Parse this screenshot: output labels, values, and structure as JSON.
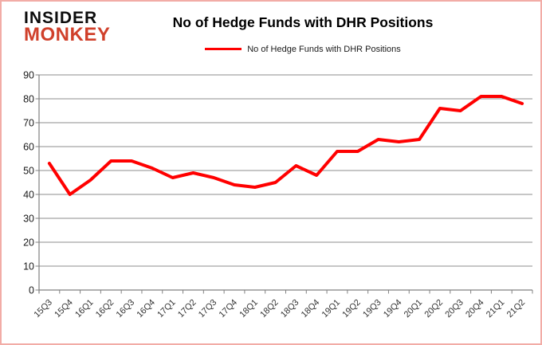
{
  "logo": {
    "line1": "INSIDER",
    "line2": "MONKEY",
    "accent_color": "#d0402b"
  },
  "header": {
    "title": "No of Hedge Funds with DHR Positions"
  },
  "legend": {
    "label": "No of Hedge Funds with DHR Positions",
    "swatch_color": "#ff0000"
  },
  "chart_data": {
    "type": "line",
    "title": "No of Hedge Funds with DHR Positions",
    "series_name": "No of Hedge Funds with DHR Positions",
    "categories": [
      "15Q3",
      "15Q4",
      "16Q1",
      "16Q2",
      "16Q3",
      "16Q4",
      "17Q1",
      "17Q2",
      "17Q3",
      "17Q4",
      "18Q1",
      "18Q2",
      "18Q3",
      "18Q4",
      "19Q1",
      "19Q2",
      "19Q3",
      "19Q4",
      "20Q1",
      "20Q2",
      "20Q3",
      "20Q4",
      "21Q1",
      "21Q2"
    ],
    "values": [
      53,
      40,
      46,
      54,
      54,
      51,
      47,
      49,
      47,
      44,
      43,
      45,
      52,
      48,
      58,
      58,
      63,
      62,
      63,
      76,
      75,
      81,
      81,
      78
    ],
    "xlabel": "",
    "ylabel": "",
    "ylim": [
      0,
      90
    ],
    "yticks": [
      0,
      10,
      20,
      30,
      40,
      50,
      60,
      70,
      80,
      90
    ],
    "grid": true,
    "legend_position": "top-center",
    "line_color": "#ff0000",
    "gridline_color": "#8c8c8c",
    "axis_color": "#808080",
    "tick_label_color": "#333333",
    "ytick_label_color": "#1a1a1a",
    "x_label_rotation_deg": -45
  },
  "frame": {
    "border_color": "#f2aca6",
    "background": "#ffffff"
  }
}
